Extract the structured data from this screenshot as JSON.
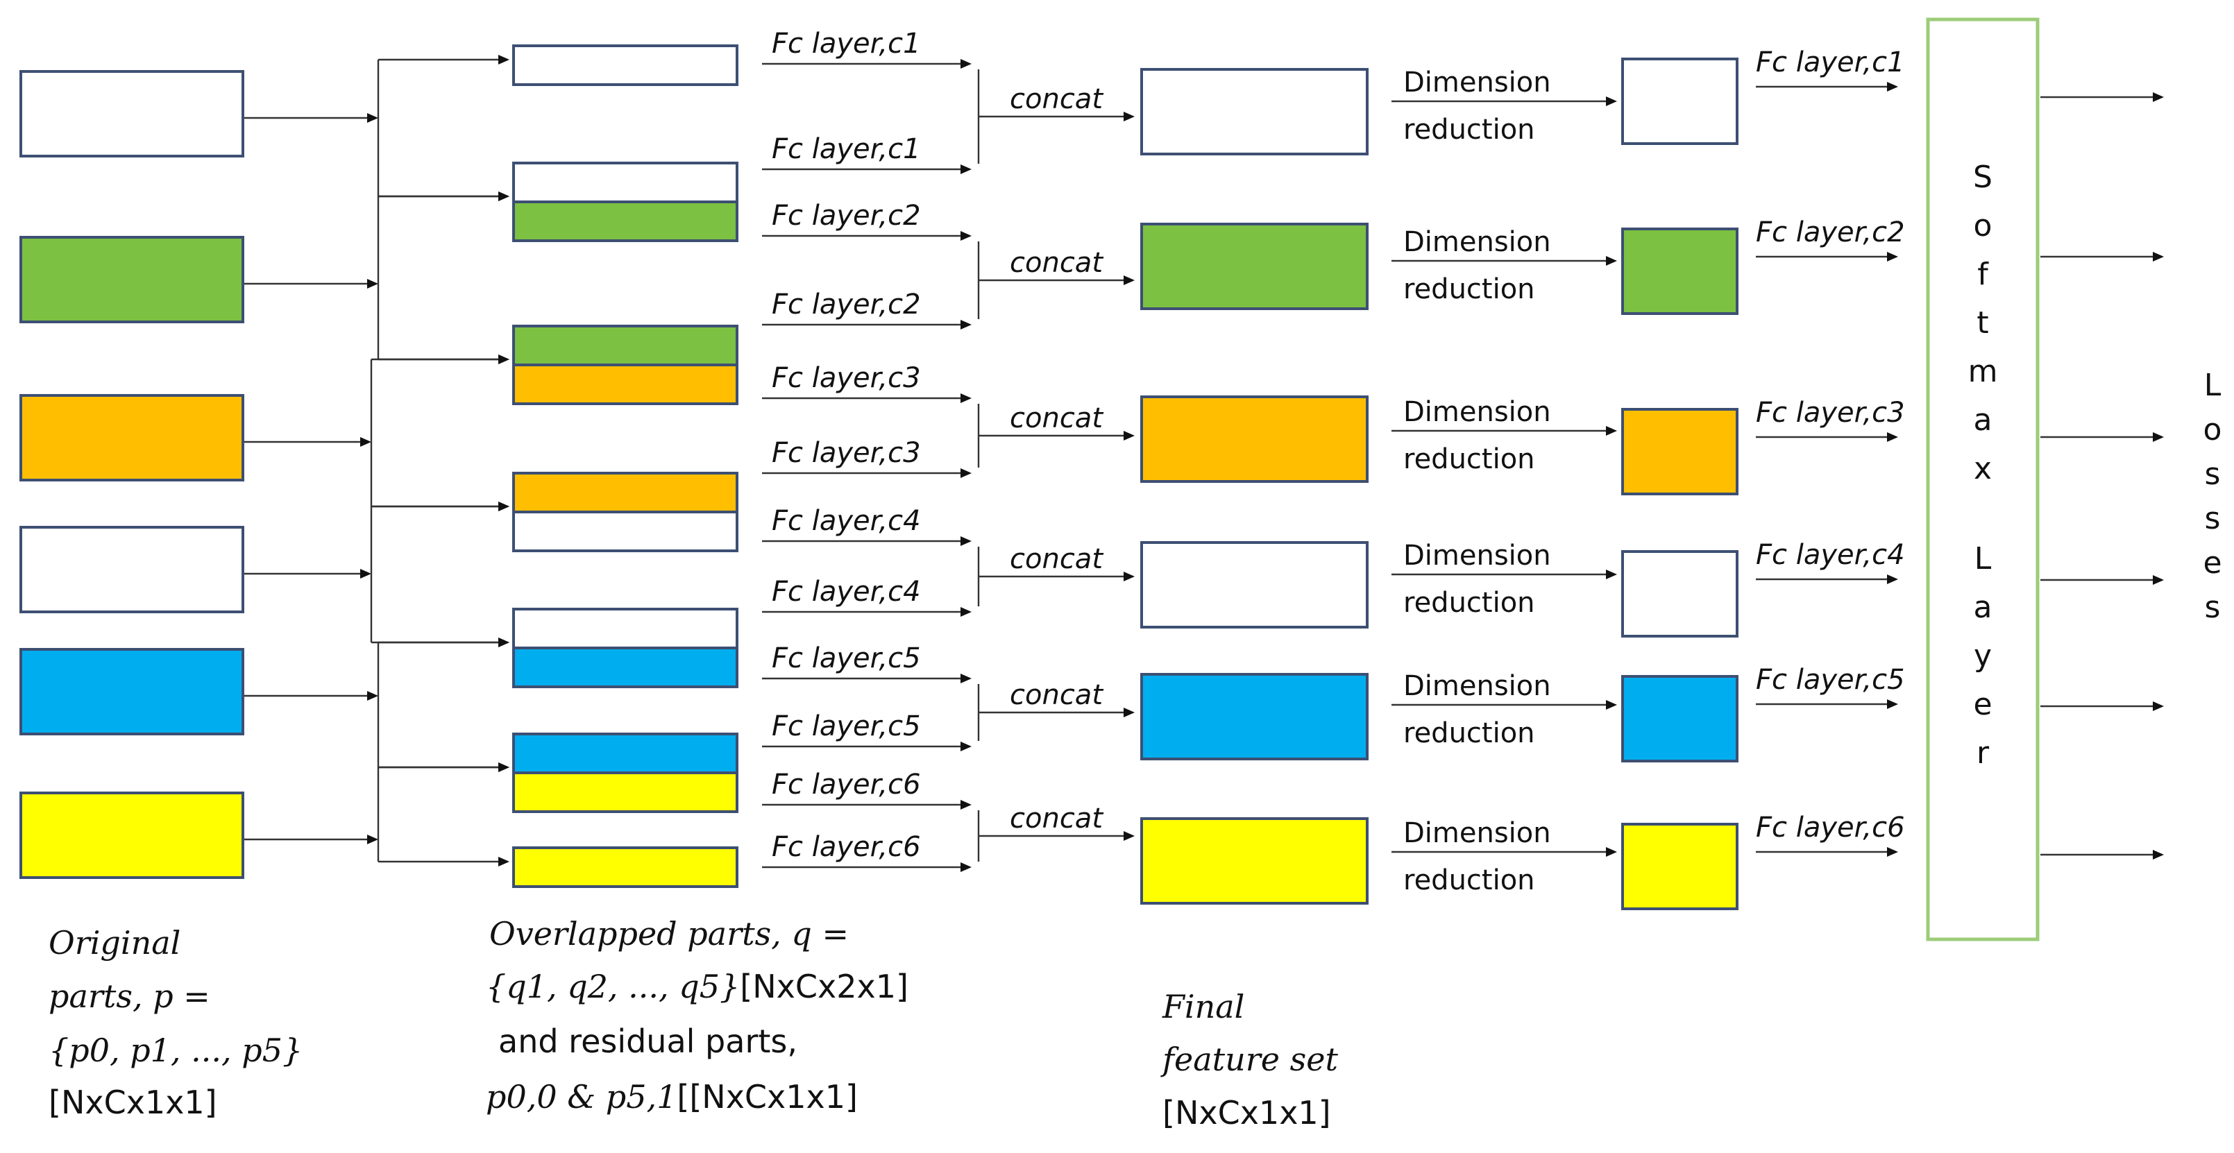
{
  "colors": {
    "white": "#ffffff",
    "green": "#7cc142",
    "orange": "#ffbf00",
    "blue": "#00aeef",
    "yellow": "#ffff00",
    "box_border": "#3d4f73",
    "softmax_border": "#9ccc7a"
  },
  "rows": [
    {
      "color": "white",
      "fc_top": "Fc layer,c1",
      "fc_bottom": "Fc layer,c1",
      "concat": "concat",
      "dim_line1": "Dimension",
      "dim_line2": "reduction",
      "fc_out": "Fc layer,c1"
    },
    {
      "color": "green",
      "fc_top": "Fc layer,c2",
      "fc_bottom": "Fc layer,c2",
      "concat": "concat",
      "dim_line1": "Dimension",
      "dim_line2": "reduction",
      "fc_out": "Fc layer,c2"
    },
    {
      "color": "orange",
      "fc_top": "Fc layer,c3",
      "fc_bottom": "Fc layer,c3",
      "concat": "concat",
      "dim_line1": "Dimension",
      "dim_line2": "reduction",
      "fc_out": "Fc layer,c3"
    },
    {
      "color": "white",
      "fc_top": "Fc layer,c4",
      "fc_bottom": "Fc layer,c4",
      "concat": "concat",
      "dim_line1": "Dimension",
      "dim_line2": "reduction",
      "fc_out": "Fc layer,c4"
    },
    {
      "color": "blue",
      "fc_top": "Fc layer,c5",
      "fc_bottom": "Fc layer,c5",
      "concat": "concat",
      "dim_line1": "Dimension",
      "dim_line2": "reduction",
      "fc_out": "Fc layer,c5"
    },
    {
      "color": "yellow",
      "fc_top": "Fc layer,c6",
      "fc_bottom": "Fc layer,c6",
      "concat": "concat",
      "dim_line1": "Dimension",
      "dim_line2": "reduction",
      "fc_out": "Fc layer,c6"
    }
  ],
  "overlapped_parts": [
    [
      "white"
    ],
    [
      "white",
      "green"
    ],
    [
      "green",
      "orange"
    ],
    [
      "orange",
      "white"
    ],
    [
      "white",
      "blue"
    ],
    [
      "blue",
      "yellow"
    ],
    [
      "yellow"
    ]
  ],
  "softmax_label": "Softmax Layer",
  "losses_label": "Losses",
  "captions": {
    "original": {
      "line1": "Original",
      "line2": "parts, p =",
      "line3": "{p0, p1, ..., p5}",
      "line4": "[NxCx1x1]"
    },
    "overlapped": {
      "line1": "Overlapped parts, q =",
      "line2_math": "{q1, q2, ..., q5}",
      "line2_rest": "[NxCx2x1]",
      "line3": "and residual parts,",
      "line4_math": "p0,0 & p5,1",
      "line4_rest": "[[NxCx1x1]"
    },
    "final": {
      "line1": "Final",
      "line2": "feature set",
      "line3": "[NxCx1x1]"
    }
  }
}
